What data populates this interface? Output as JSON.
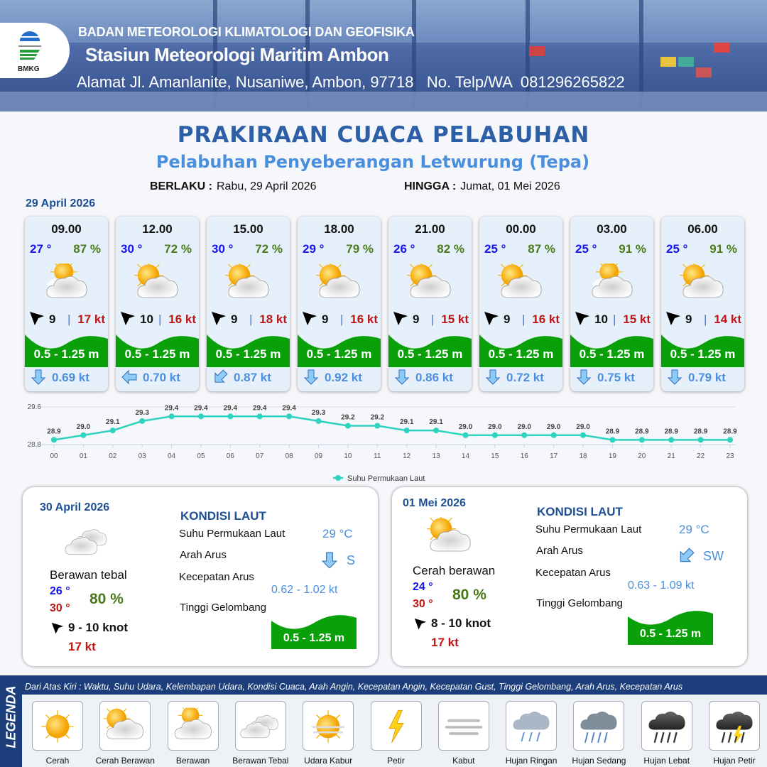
{
  "header": {
    "org": "BADAN METEOROLOGI KLIMATOLOGI DAN GEOFISIKA",
    "station": "Stasiun Meteorologi Maritim Ambon",
    "address": "Alamat Jl. Amanlanite, Nusaniwe, Ambon, 97718   No. Telp/WA  081296265822",
    "logo_text": "BMKG"
  },
  "title": "PRAKIRAAN CUACA PELABUHAN",
  "subtitle": "Pelabuhan Penyeberangan Letwurung (Tepa)",
  "validity": {
    "from_label": "BERLAKU :",
    "from": "Rabu, 29 April 2026",
    "to_label": "HINGGA :",
    "to": "Jumat, 01 Mei 2026"
  },
  "day_label": "29 April 2026",
  "forecasts": [
    {
      "time": "09.00",
      "temp": "27 °",
      "hum": "87 %",
      "icon": "berawan",
      "wind": "9",
      "gust": "17 kt",
      "wave": "0.5 - 1.25 m",
      "current_dir": "S",
      "current": "0.69 kt"
    },
    {
      "time": "12.00",
      "temp": "30 °",
      "hum": "72 %",
      "icon": "cerah-berawan",
      "wind": "10",
      "gust": "16 kt",
      "wave": "0.5 - 1.25 m",
      "current_dir": "W",
      "current": "0.70 kt"
    },
    {
      "time": "15.00",
      "temp": "30 °",
      "hum": "72 %",
      "icon": "cerah-berawan",
      "wind": "9",
      "gust": "18 kt",
      "wave": "0.5 - 1.25 m",
      "current_dir": "SW",
      "current": "0.87 kt"
    },
    {
      "time": "18.00",
      "temp": "29 °",
      "hum": "79 %",
      "icon": "cerah-berawan",
      "wind": "9",
      "gust": "16 kt",
      "wave": "0.5 - 1.25 m",
      "current_dir": "S",
      "current": "0.92 kt"
    },
    {
      "time": "21.00",
      "temp": "26 °",
      "hum": "82 %",
      "icon": "cerah-berawan",
      "wind": "9",
      "gust": "15 kt",
      "wave": "0.5 - 1.25 m",
      "current_dir": "S",
      "current": "0.86 kt"
    },
    {
      "time": "00.00",
      "temp": "25 °",
      "hum": "87 %",
      "icon": "cerah-berawan",
      "wind": "9",
      "gust": "16 kt",
      "wave": "0.5 - 1.25 m",
      "current_dir": "S",
      "current": "0.72 kt"
    },
    {
      "time": "03.00",
      "temp": "25 °",
      "hum": "91 %",
      "icon": "berawan",
      "wind": "10",
      "gust": "15 kt",
      "wave": "0.5 - 1.25 m",
      "current_dir": "S",
      "current": "0.75 kt"
    },
    {
      "time": "06.00",
      "temp": "25 °",
      "hum": "91 %",
      "icon": "cerah-berawan",
      "wind": "9",
      "gust": "14 kt",
      "wave": "0.5 - 1.25 m",
      "current_dir": "S",
      "current": "0.79 kt"
    }
  ],
  "chart_data": {
    "type": "line",
    "categories": [
      "00",
      "01",
      "02",
      "03",
      "04",
      "05",
      "06",
      "07",
      "08",
      "09",
      "10",
      "11",
      "12",
      "13",
      "14",
      "15",
      "16",
      "17",
      "18",
      "19",
      "20",
      "21",
      "22",
      "23"
    ],
    "series": [
      {
        "name": "Suhu Permukaan Laut",
        "values": [
          28.9,
          29.0,
          29.1,
          29.3,
          29.4,
          29.4,
          29.4,
          29.4,
          29.4,
          29.3,
          29.2,
          29.2,
          29.1,
          29.1,
          29.0,
          29.0,
          29.0,
          29.0,
          29.0,
          28.9,
          28.9,
          28.9,
          28.9,
          28.9
        ],
        "color": "#2ed3c0"
      }
    ],
    "yticks": [
      "28.8",
      "29.6"
    ],
    "ylim": [
      28.8,
      29.6
    ],
    "legend": "bottom",
    "grid": true
  },
  "days": [
    {
      "date": "30 April 2026",
      "condition": "Berawan tebal",
      "icon": "berawan-tebal",
      "tmin": "26 °",
      "tmax": "30 °",
      "hum": "80 %",
      "wind": "9 - 10 knot",
      "gust": "17 kt",
      "kondisi": "KONDISI LAUT",
      "sst_label": "Suhu Permukaan Laut",
      "sst": "29 °C",
      "dir_label": "Arah Arus",
      "dir": "S",
      "speed_label": "Kecepatan Arus",
      "speed": "0.62 - 1.02 kt",
      "wave_label": "Tinggi Gelombang",
      "wave": "0.5 - 1.25 m"
    },
    {
      "date": "01 Mei 2026",
      "condition": "Cerah berawan",
      "icon": "cerah-berawan",
      "tmin": "24 °",
      "tmax": "30 °",
      "hum": "80 %",
      "wind": "8 - 10 knot",
      "gust": "17 kt",
      "kondisi": "KONDISI LAUT",
      "sst_label": "Suhu Permukaan Laut",
      "sst": "29 °C",
      "dir_label": "Arah Arus",
      "dir": "SW",
      "speed_label": "Kecepatan Arus",
      "speed": "0.63 - 1.09 kt",
      "wave_label": "Tinggi Gelombang",
      "wave": "0.5 - 1.25 m"
    }
  ],
  "legend": {
    "title": "LEGENDA",
    "description": "Dari Atas Kiri : Waktu, Suhu Udara, Kelembapan Udara, Kondisi Cuaca, Arah Angin, Kecepatan Angin, Kecepatan Gust, Tinggi Gelombang, Arah Arus, Kecepatan Arus",
    "items": [
      {
        "label": "Cerah",
        "icon": "cerah"
      },
      {
        "label": "Cerah Berawan",
        "icon": "cerah-berawan"
      },
      {
        "label": "Berawan",
        "icon": "berawan"
      },
      {
        "label": "Berawan Tebal",
        "icon": "berawan-tebal"
      },
      {
        "label": "Udara Kabur",
        "icon": "udara-kabur"
      },
      {
        "label": "Petir",
        "icon": "petir"
      },
      {
        "label": "Kabut",
        "icon": "kabut"
      },
      {
        "label": "Hujan Ringan",
        "icon": "hujan-ringan"
      },
      {
        "label": "Hujan Sedang",
        "icon": "hujan-sedang"
      },
      {
        "label": "Hujan Lebat",
        "icon": "hujan-lebat"
      },
      {
        "label": "Hujan Petir",
        "icon": "hujan-petir"
      }
    ]
  },
  "colors": {
    "title": "#2c5fa6",
    "temp": "#1515ee",
    "humidity": "#4a7a1c",
    "gust": "#c01515",
    "wave": "#0aa00a",
    "current": "#4a8fdd"
  }
}
